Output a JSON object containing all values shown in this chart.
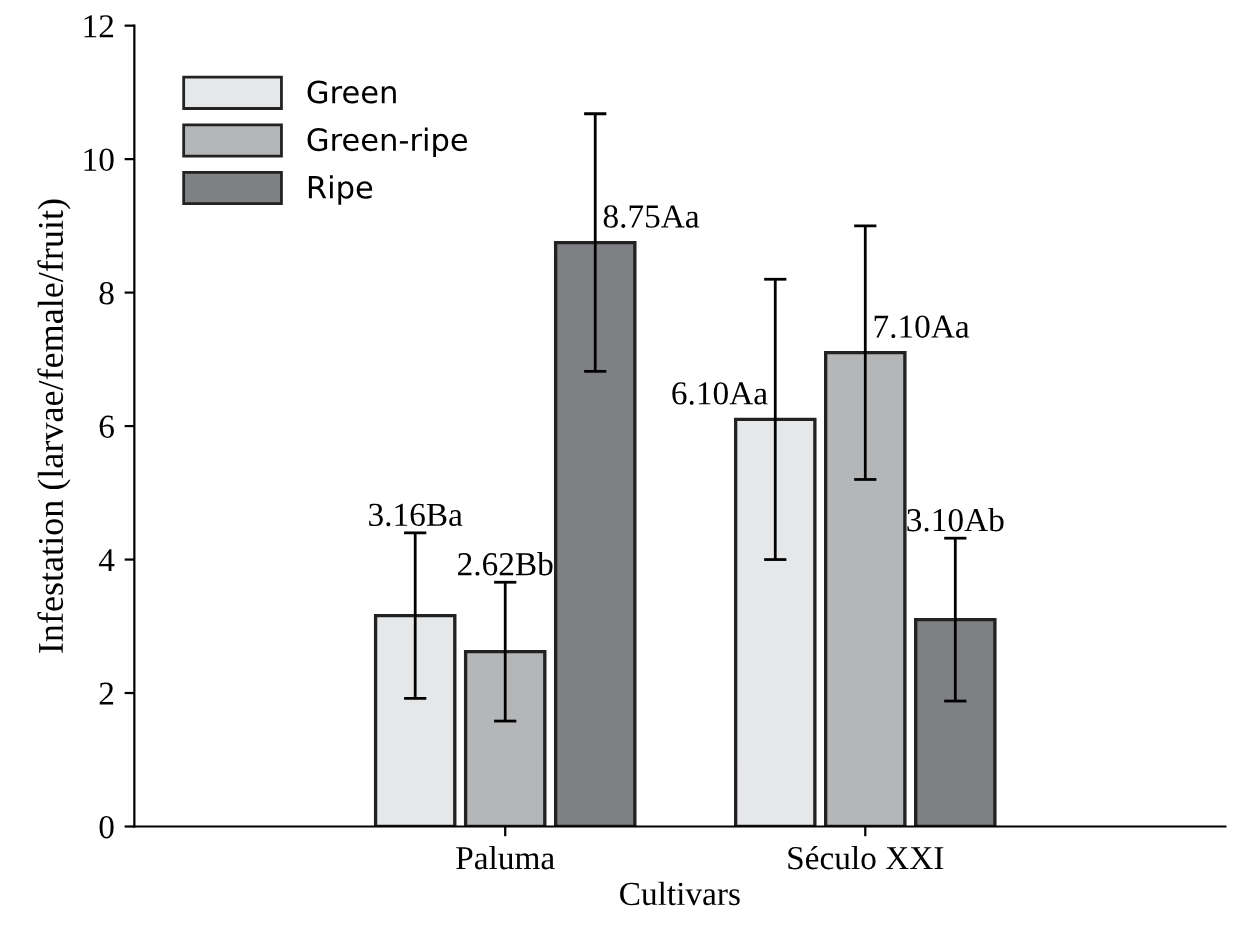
{
  "chart_data": {
    "type": "bar",
    "xlabel": "Cultivars",
    "ylabel": "Infestation (larvae/female/fruit)",
    "categories": [
      "Paluma",
      "Século XXI"
    ],
    "series": [
      {
        "name": "Green",
        "color": "#e6e7e9",
        "values": [
          3.16,
          6.1
        ],
        "errors": [
          1.24,
          2.1
        ],
        "value_labels": [
          "3.16Ba",
          "6.10Aa"
        ]
      },
      {
        "name": "Green-ripe",
        "color": "#b5b6b8",
        "values": [
          2.62,
          7.1
        ],
        "errors": [
          1.04,
          1.9
        ],
        "value_labels": [
          "2.62Bb",
          "7.10Aa"
        ]
      },
      {
        "name": "Ripe",
        "color": "#7f8083",
        "values": [
          8.75,
          3.1
        ],
        "errors": [
          1.93,
          1.22
        ],
        "value_labels": [
          "8.75Aa",
          "3.10Ab"
        ]
      }
    ],
    "ylim": [
      0,
      12
    ],
    "yticks": [
      0,
      2,
      4,
      6,
      8,
      10,
      12
    ],
    "grid": false,
    "legend": "top left"
  }
}
